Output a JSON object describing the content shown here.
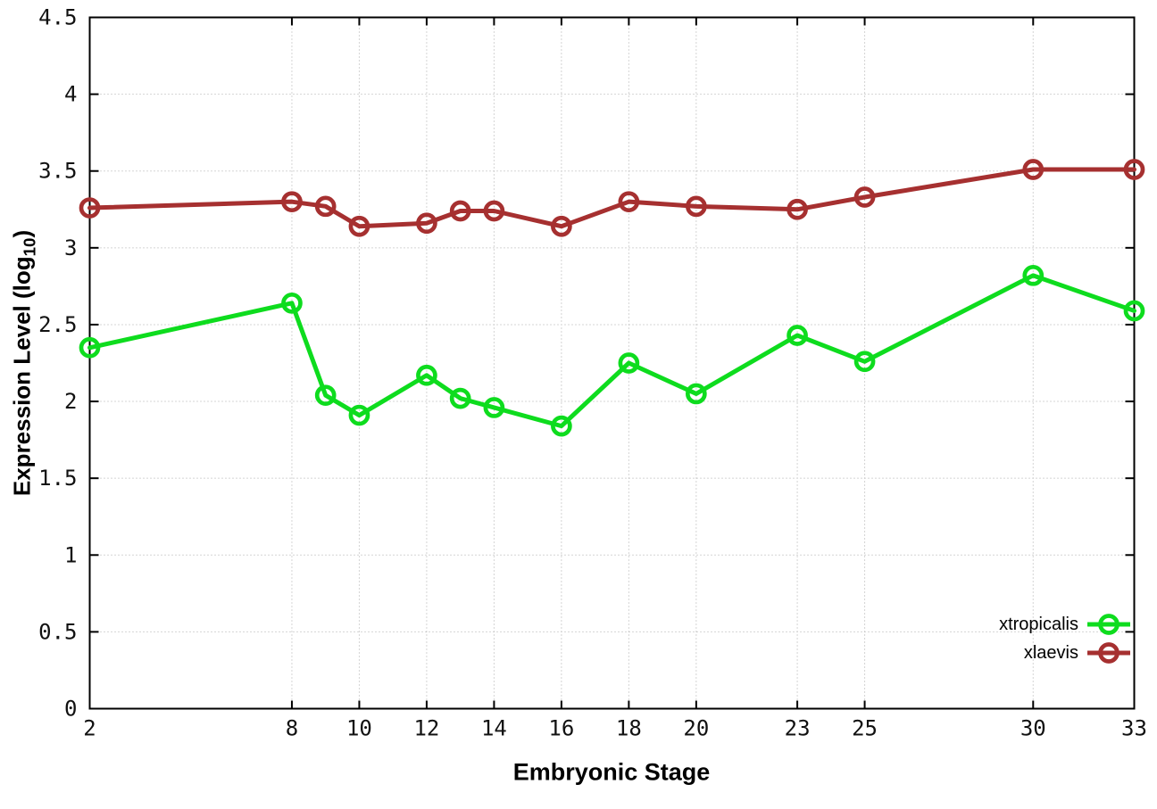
{
  "chart_data": {
    "type": "line",
    "title": "",
    "xlabel": "Embryonic Stage",
    "ylabel": {
      "pre": "Expression Level (log",
      "sub": "10",
      "post": ")"
    },
    "x": [
      2,
      8,
      9,
      10,
      12,
      13,
      14,
      16,
      18,
      20,
      23,
      25,
      30,
      33
    ],
    "series": [
      {
        "name": "xtropicalis",
        "color": "#0edc1e",
        "marker": "open-circle",
        "values": [
          2.35,
          2.64,
          2.04,
          1.91,
          2.17,
          2.02,
          1.96,
          1.84,
          2.25,
          2.05,
          2.43,
          2.26,
          2.82,
          2.59
        ]
      },
      {
        "name": "xlaevis",
        "color": "#a63030",
        "marker": "open-circle",
        "values": [
          3.26,
          3.3,
          3.27,
          3.14,
          3.16,
          3.24,
          3.24,
          3.14,
          3.3,
          3.27,
          3.25,
          3.33,
          3.51,
          3.51
        ]
      }
    ],
    "xlim": [
      2,
      33
    ],
    "ylim": [
      0,
      4.5
    ],
    "xticks": {
      "values": [
        2,
        8,
        10,
        12,
        14,
        16,
        18,
        20,
        23,
        25,
        30,
        33
      ],
      "labels": [
        "2",
        "8",
        "10",
        "12",
        "14",
        "16",
        "18",
        "20",
        "23",
        "25",
        "30",
        "33"
      ]
    },
    "yticks": {
      "values": [
        0,
        0.5,
        1,
        1.5,
        2,
        2.5,
        3,
        3.5,
        4,
        4.5
      ],
      "labels": [
        "0",
        "0.5",
        "1",
        "1.5",
        "2",
        "2.5",
        "3",
        "3.5",
        "4",
        "4.5"
      ]
    },
    "grid": true,
    "legend_position": "bottom-right",
    "styles": {
      "grid_color": "#a9a9a9",
      "border_color": "#000000",
      "tick_text_color": "#111111"
    }
  }
}
